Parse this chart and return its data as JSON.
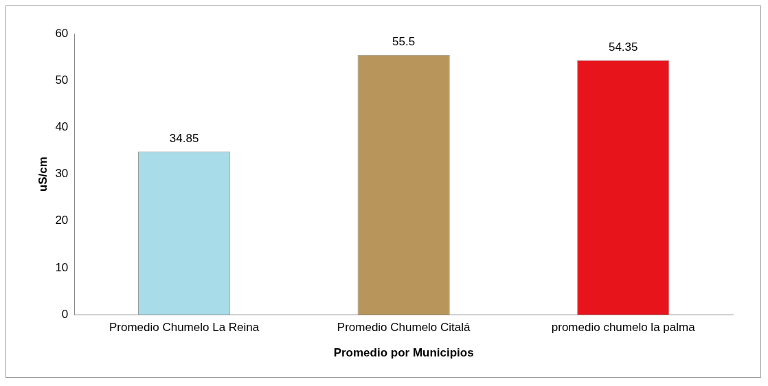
{
  "chart_data": {
    "type": "bar",
    "xlabel": "Promedio por Municipios",
    "ylabel": "uS/cm",
    "categories": [
      "Promedio Chumelo La Reina",
      "Promedio Chumelo Citalá",
      "promedio chumelo la palma"
    ],
    "values": [
      34.85,
      55.5,
      54.35
    ],
    "colors": [
      "#a8dce8",
      "#b8955a",
      "#e8141c"
    ],
    "ylim": [
      0,
      60
    ],
    "yticks": [
      0,
      10,
      20,
      30,
      40,
      50,
      60
    ],
    "grid": false,
    "legend": false,
    "data_labels": true
  }
}
